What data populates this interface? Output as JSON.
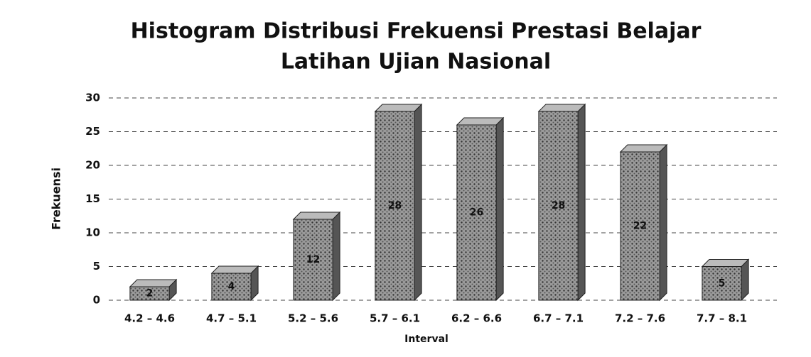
{
  "chart_data": {
    "type": "bar",
    "title": [
      "Histogram Distribusi Frekuensi Prestasi Belajar",
      "Latihan Ujian Nasional"
    ],
    "x_label": "Interval",
    "y_label": "Frekuensi",
    "categories": [
      "4.2 – 4.6",
      "4.7 – 5.1",
      "5.2 – 5.6",
      "5.7 – 6.1",
      "6.2 – 6.6",
      "6.7 – 7.1",
      "7.2 – 7.6",
      "7.7 – 8.1"
    ],
    "values": [
      2,
      4,
      12,
      28,
      26,
      28,
      22,
      5
    ],
    "color": "#8a8a8a",
    "ylim": [
      0,
      30
    ],
    "yticks": [
      0,
      5,
      10,
      15,
      20,
      25,
      30
    ],
    "grid": true
  }
}
